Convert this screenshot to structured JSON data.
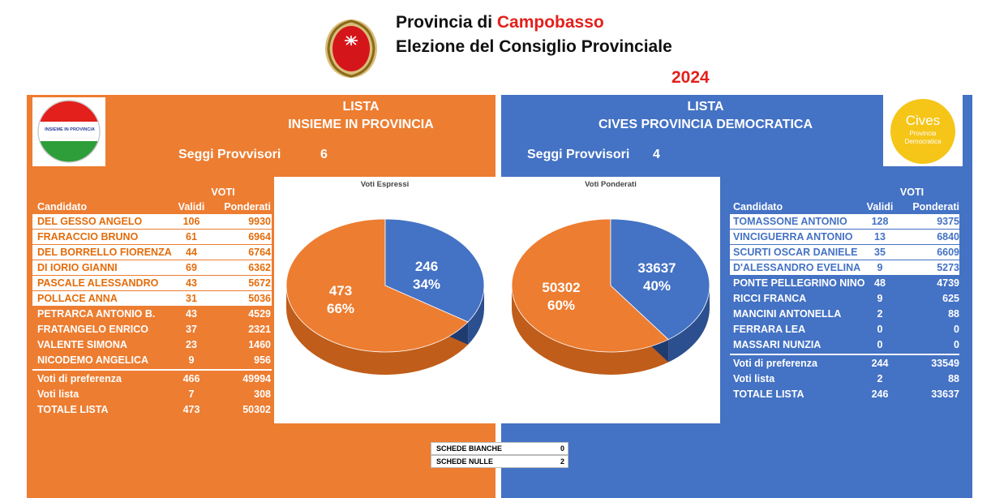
{
  "header": {
    "line1_prefix": "Provincia di ",
    "line1_highlight": "Campobasso",
    "line2": "Elezione del Consiglio Provinciale",
    "year": "2024"
  },
  "colors": {
    "orange": "#ed7d31",
    "blue": "#4472c4",
    "red": "#e3201b"
  },
  "left": {
    "logo_text": "INSIEME IN PROVINCIA",
    "title_line1": "LISTA",
    "title_line2": "INSIEME IN PROVINCIA",
    "seggi_label": "Seggi Provvisori",
    "seggi_value": "6",
    "voti_header": "VOTI",
    "col_candidato": "Candidato",
    "col_validi": "Validi",
    "col_ponderati": "Ponderati",
    "candidates": [
      {
        "name": "DEL GESSO ANGELO",
        "validi": "106",
        "ponderati": "9930"
      },
      {
        "name": "FRARACCIO BRUNO",
        "validi": "61",
        "ponderati": "6964"
      },
      {
        "name": "DEL BORRELLO FIORENZA",
        "validi": "44",
        "ponderati": "6764"
      },
      {
        "name": "DI IORIO GIANNI",
        "validi": "69",
        "ponderati": "6362"
      },
      {
        "name": "PASCALE ALESSANDRO",
        "validi": "43",
        "ponderati": "5672"
      },
      {
        "name": "POLLACE ANNA",
        "validi": "31",
        "ponderati": "5036"
      },
      {
        "name": "PETRARCA ANTONIO B.",
        "validi": "43",
        "ponderati": "4529"
      },
      {
        "name": "FRATANGELO ENRICO",
        "validi": "37",
        "ponderati": "2321"
      },
      {
        "name": "VALENTE SIMONA",
        "validi": "23",
        "ponderati": "1460"
      },
      {
        "name": "NICODEMO ANGELICA",
        "validi": "9",
        "ponderati": "956"
      }
    ],
    "totals": [
      {
        "name": "Voti di preferenza",
        "validi": "466",
        "ponderati": "49994"
      },
      {
        "name": "Voti lista",
        "validi": "7",
        "ponderati": "308"
      },
      {
        "name": "TOTALE LISTA",
        "validi": "473",
        "ponderati": "50302"
      }
    ]
  },
  "right": {
    "logo_text1": "Cives",
    "logo_text2": "Provincia",
    "logo_text3": "Democratica",
    "title_line1": "LISTA",
    "title_line2": "CIVES PROVINCIA DEMOCRATICA",
    "seggi_label": "Seggi Provvisori",
    "seggi_value": "4",
    "voti_header": "VOTI",
    "col_candidato": "Candidato",
    "col_validi": "Validi",
    "col_ponderati": "Ponderati",
    "candidates": [
      {
        "name": "TOMASSONE ANTONIO",
        "validi": "128",
        "ponderati": "9375"
      },
      {
        "name": "VINCIGUERRA ANTONIO",
        "validi": "13",
        "ponderati": "6840"
      },
      {
        "name": "SCURTI OSCAR DANIELE",
        "validi": "35",
        "ponderati": "6609"
      },
      {
        "name": "D'ALESSANDRO EVELINA",
        "validi": "9",
        "ponderati": "5273"
      },
      {
        "name": "PONTE PELLEGRINO NINO",
        "validi": "48",
        "ponderati": "4739"
      },
      {
        "name": "RICCI FRANCA",
        "validi": "9",
        "ponderati": "625"
      },
      {
        "name": "MANCINI ANTONELLA",
        "validi": "2",
        "ponderati": "88"
      },
      {
        "name": "FERRARA LEA",
        "validi": "0",
        "ponderati": "0"
      },
      {
        "name": "MASSARI NUNZIA",
        "validi": "0",
        "ponderati": "0"
      }
    ],
    "totals": [
      {
        "name": "Voti di preferenza",
        "validi": "244",
        "ponderati": "33549"
      },
      {
        "name": "Voti lista",
        "validi": "2",
        "ponderati": "88"
      },
      {
        "name": "TOTALE LISTA",
        "validi": "246",
        "ponderati": "33637"
      }
    ]
  },
  "chart_data": [
    {
      "type": "pie",
      "title": "Voti Espressi",
      "categories": [
        "INSIEME IN PROVINCIA",
        "CIVES PROVINCIA DEMOCRATICA"
      ],
      "values": [
        473,
        246
      ],
      "percent_labels": [
        "66%",
        "34%"
      ],
      "colors": [
        "#ed7d31",
        "#4472c4"
      ]
    },
    {
      "type": "pie",
      "title": "Voti Ponderati",
      "categories": [
        "INSIEME IN PROVINCIA",
        "CIVES PROVINCIA DEMOCRATICA"
      ],
      "values": [
        50302,
        33637
      ],
      "percent_labels": [
        "60%",
        "40%"
      ],
      "colors": [
        "#ed7d31",
        "#4472c4"
      ]
    }
  ],
  "schede": {
    "bianche_label": "SCHEDE BIANCHE",
    "bianche_value": "0",
    "nulle_label": "SCHEDE NULLE",
    "nulle_value": "2"
  }
}
